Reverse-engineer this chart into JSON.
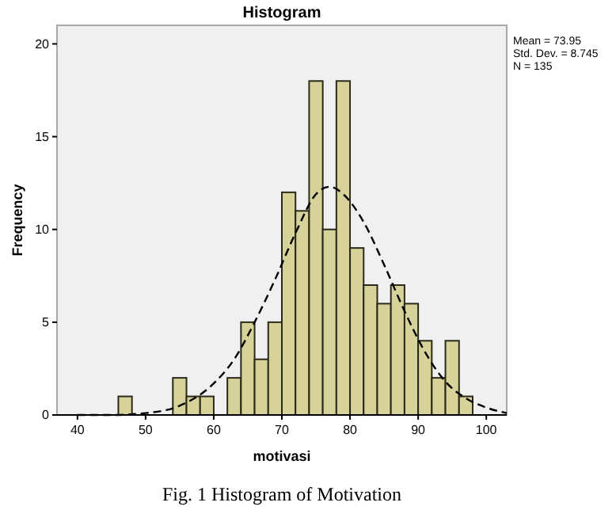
{
  "chart_data": {
    "type": "histogram",
    "title": "Histogram",
    "xlabel": "motivasi",
    "ylabel": "Frequency",
    "bins": [
      46,
      48,
      50,
      52,
      54,
      56,
      58,
      60,
      62,
      64,
      66,
      68,
      70,
      72,
      74,
      76,
      78,
      80,
      82,
      84,
      86,
      88,
      90,
      92,
      94,
      96,
      98
    ],
    "values": [
      1,
      0,
      0,
      0,
      2,
      1,
      1,
      0,
      2,
      5,
      3,
      5,
      12,
      11,
      18,
      10,
      18,
      9,
      7,
      6,
      7,
      6,
      4,
      2,
      4,
      1
    ],
    "color": "#d6d29a",
    "series": [
      {
        "type": "line",
        "color": "#000000",
        "line_style": "dashed",
        "x": [
          40,
          45,
          50,
          55,
          60,
          63,
          66,
          69,
          72,
          75,
          77,
          79,
          82,
          85,
          88,
          91,
          94,
          97,
          100,
          103
        ],
        "values": [
          0,
          0,
          0.1,
          0.5,
          1.7,
          3,
          5,
          7.3,
          9.8,
          11.9,
          12.3,
          11.9,
          10.4,
          8.1,
          5.6,
          3.4,
          1.8,
          0.9,
          0.4,
          0.1
        ]
      }
    ],
    "xlim": [
      37,
      103
    ],
    "xticks": [
      40,
      50,
      60,
      70,
      80,
      90,
      100
    ],
    "ylim": [
      0,
      21
    ],
    "yticks": [
      0,
      5,
      10,
      15,
      20
    ],
    "grid": false,
    "annotations": [
      "Mean = 73.95",
      "Std. Dev. = 8.745",
      "N = 135",
      "Fig. 1 Histogram of Motivation"
    ]
  }
}
